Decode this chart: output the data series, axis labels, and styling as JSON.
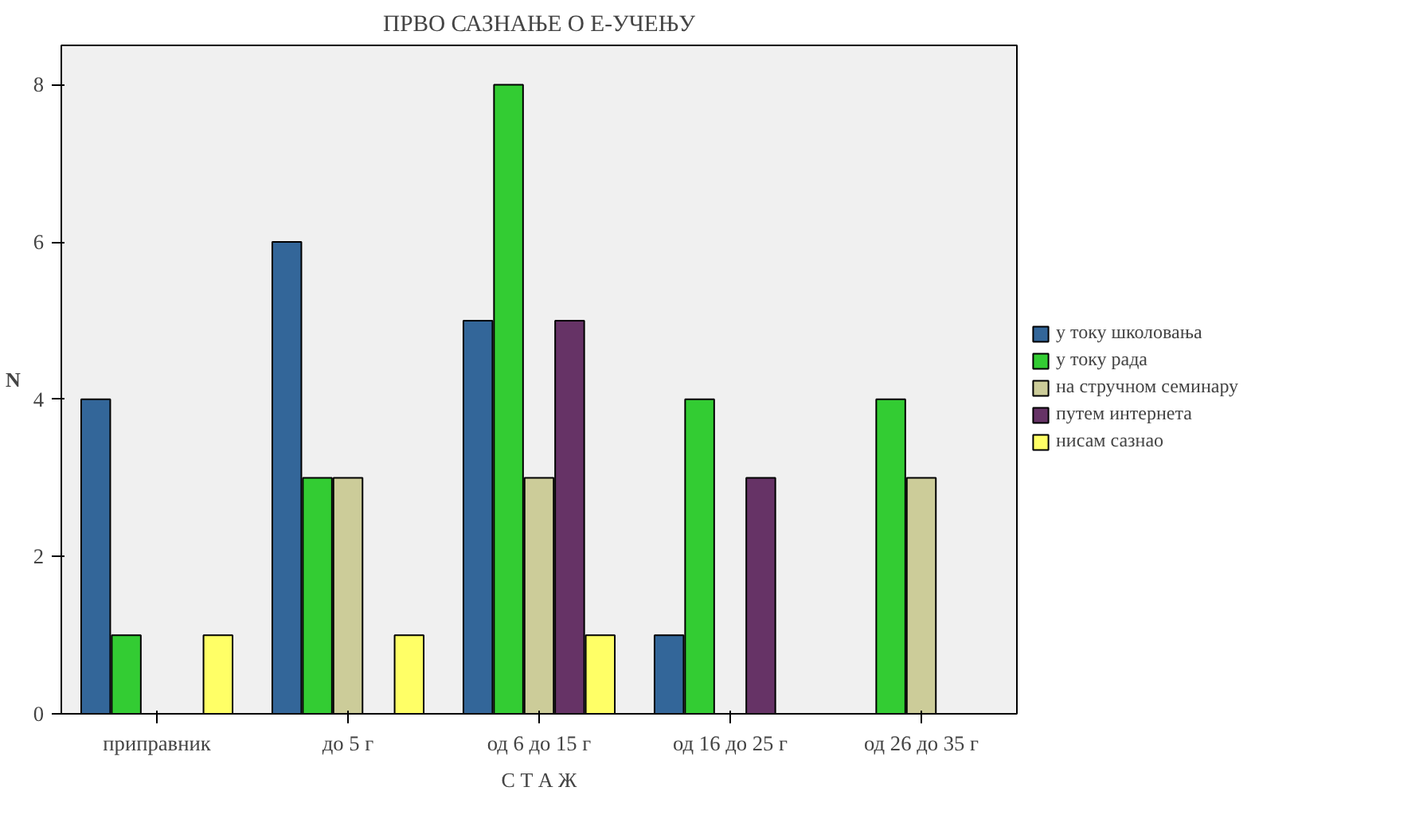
{
  "chart_data": {
    "type": "bar",
    "title": "ПРВО САЗНАЊЕ О Е-УЧЕЊУ",
    "xlabel": "С Т А Ж",
    "ylabel": "N",
    "categories": [
      "приправник",
      "до 5 г",
      "од 6 до 15 г",
      "од 16 до 25 г",
      "од 26 до 35 г"
    ],
    "series": [
      {
        "name": "у току школовања",
        "color": "#336699",
        "values": [
          4,
          6,
          5,
          1,
          null
        ]
      },
      {
        "name": "у току рада",
        "color": "#33cc33",
        "values": [
          1,
          3,
          8,
          4,
          4
        ]
      },
      {
        "name": "на стручном семинару",
        "color": "#cccc99",
        "values": [
          null,
          3,
          3,
          null,
          3
        ]
      },
      {
        "name": "путем интернета",
        "color": "#663366",
        "values": [
          null,
          null,
          5,
          3,
          null
        ]
      },
      {
        "name": "нисам сазнао",
        "color": "#ffff66",
        "values": [
          1,
          1,
          1,
          null,
          null
        ]
      }
    ],
    "ylim": [
      0,
      8.5
    ],
    "yticks": [
      0,
      2,
      4,
      6,
      8
    ],
    "grid": false,
    "legend": "right"
  }
}
